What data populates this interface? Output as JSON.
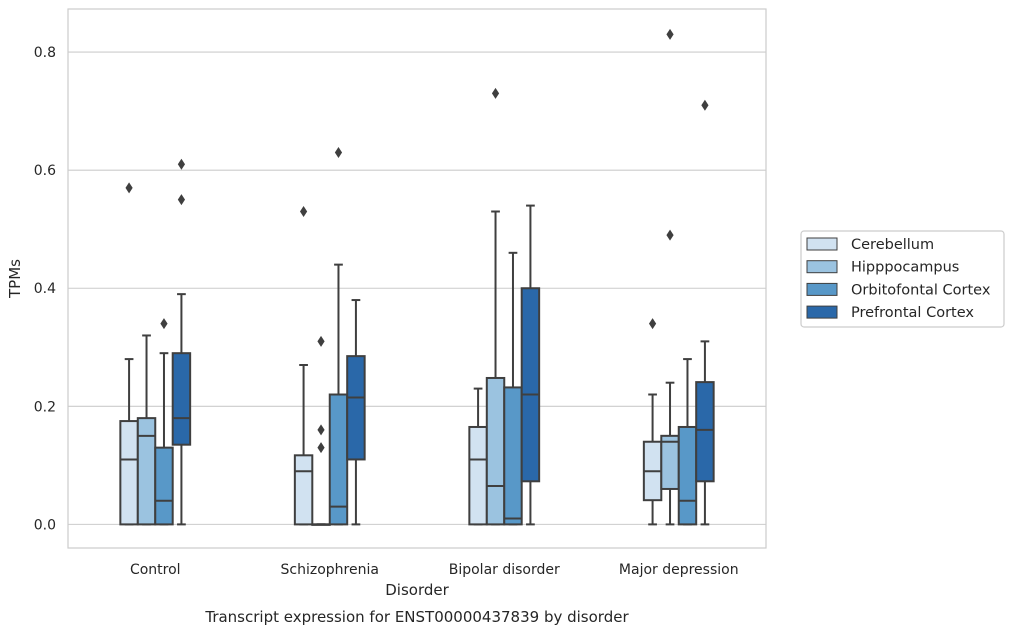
{
  "chart_data": {
    "type": "box",
    "title": "Transcript expression for ENST00000437839 by disorder",
    "xlabel": "Disorder",
    "ylabel": "TPMs",
    "ylim": [
      -0.04,
      0.873
    ],
    "yticks": [
      0.0,
      0.2,
      0.4,
      0.6,
      0.8
    ],
    "ytick_labels": [
      "0.0",
      "0.2",
      "0.4",
      "0.6",
      "0.8"
    ],
    "grid": "horizontal",
    "legend_position": "right",
    "categories": [
      "Control",
      "Schizophrenia",
      "Bipolar disorder",
      "Major depression"
    ],
    "series": [
      {
        "name": "Cerebellum",
        "color": "#d1e2f1",
        "boxes": [
          {
            "q1": 0.0,
            "median": 0.11,
            "q3": 0.175,
            "whisker_low": 0.0,
            "whisker_high": 0.28,
            "outliers": [
              0.57
            ]
          },
          {
            "q1": 0.0,
            "median": 0.09,
            "q3": 0.117,
            "whisker_low": 0.0,
            "whisker_high": 0.27,
            "outliers": [
              0.53
            ]
          },
          {
            "q1": 0.0,
            "median": 0.11,
            "q3": 0.165,
            "whisker_low": 0.0,
            "whisker_high": 0.23,
            "outliers": []
          },
          {
            "q1": 0.041,
            "median": 0.09,
            "q3": 0.14,
            "whisker_low": 0.0,
            "whisker_high": 0.22,
            "outliers": [
              0.34
            ]
          }
        ]
      },
      {
        "name": "Hipppocampus",
        "color": "#9bc3e0",
        "boxes": [
          {
            "q1": 0.0,
            "median": 0.15,
            "q3": 0.18,
            "whisker_low": 0.0,
            "whisker_high": 0.32,
            "outliers": []
          },
          {
            "q1": 0.0,
            "median": 0.0,
            "q3": 0.0,
            "whisker_low": 0.0,
            "whisker_high": 0.0,
            "outliers": [
              0.31,
              0.16,
              0.13
            ]
          },
          {
            "q1": 0.0,
            "median": 0.065,
            "q3": 0.248,
            "whisker_low": 0.0,
            "whisker_high": 0.53,
            "outliers": [
              0.73
            ]
          },
          {
            "q1": 0.06,
            "median": 0.14,
            "q3": 0.15,
            "whisker_low": 0.0,
            "whisker_high": 0.24,
            "outliers": [
              0.49,
              0.83
            ]
          }
        ]
      },
      {
        "name": "Orbitofontal Cortex",
        "color": "#5898c8",
        "boxes": [
          {
            "q1": 0.0,
            "median": 0.04,
            "q3": 0.13,
            "whisker_low": 0.0,
            "whisker_high": 0.29,
            "outliers": [
              0.34
            ]
          },
          {
            "q1": 0.0,
            "median": 0.03,
            "q3": 0.22,
            "whisker_low": 0.0,
            "whisker_high": 0.44,
            "outliers": [
              0.63
            ]
          },
          {
            "q1": 0.0,
            "median": 0.01,
            "q3": 0.232,
            "whisker_low": 0.0,
            "whisker_high": 0.46,
            "outliers": []
          },
          {
            "q1": 0.0,
            "median": 0.04,
            "q3": 0.165,
            "whisker_low": 0.0,
            "whisker_high": 0.28,
            "outliers": []
          }
        ]
      },
      {
        "name": "Prefrontal Cortex",
        "color": "#2a68a9",
        "boxes": [
          {
            "q1": 0.135,
            "median": 0.18,
            "q3": 0.29,
            "whisker_low": 0.0,
            "whisker_high": 0.39,
            "outliers": [
              0.55,
              0.61
            ]
          },
          {
            "q1": 0.11,
            "median": 0.215,
            "q3": 0.285,
            "whisker_low": 0.0,
            "whisker_high": 0.38,
            "outliers": []
          },
          {
            "q1": 0.073,
            "median": 0.22,
            "q3": 0.4,
            "whisker_low": 0.0,
            "whisker_high": 0.54,
            "outliers": []
          },
          {
            "q1": 0.073,
            "median": 0.16,
            "q3": 0.241,
            "whisker_low": 0.0,
            "whisker_high": 0.31,
            "outliers": [
              0.71
            ]
          }
        ]
      }
    ]
  }
}
